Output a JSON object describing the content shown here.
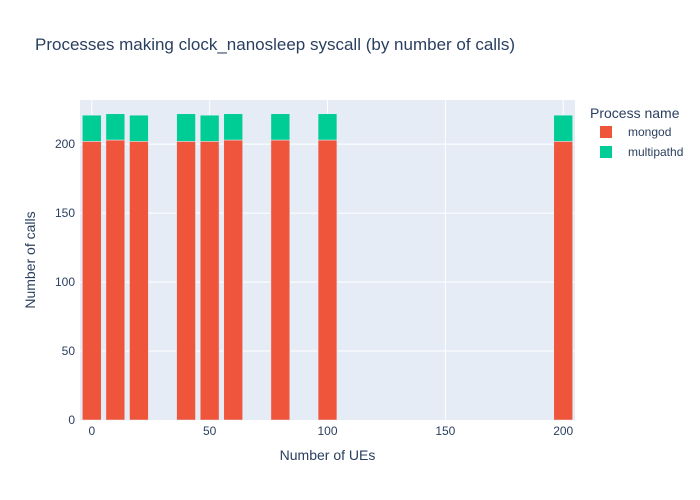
{
  "chart_data": {
    "type": "bar",
    "barmode": "stack",
    "title": "Processes making clock_nanosleep syscall (by number of calls)",
    "xlabel": "Number of UEs",
    "ylabel": "Number of calls",
    "xlim": [
      -5,
      205
    ],
    "ylim": [
      0,
      232
    ],
    "xticks": [
      0,
      50,
      100,
      150,
      200
    ],
    "yticks": [
      0,
      50,
      100,
      150,
      200
    ],
    "grid": true,
    "legend_title": "Process name",
    "legend_position": "top-right",
    "x": [
      0,
      10,
      20,
      40,
      50,
      60,
      80,
      100,
      200
    ],
    "series": [
      {
        "name": "mongod",
        "color": "#EF553B",
        "values": [
          202,
          203,
          202,
          202,
          202,
          203,
          203,
          203,
          202
        ]
      },
      {
        "name": "multipathd",
        "color": "#00CC96",
        "values": [
          19,
          19,
          19,
          20,
          19,
          19,
          19,
          19,
          19
        ]
      }
    ],
    "plot_background": "#E5ECF6"
  }
}
